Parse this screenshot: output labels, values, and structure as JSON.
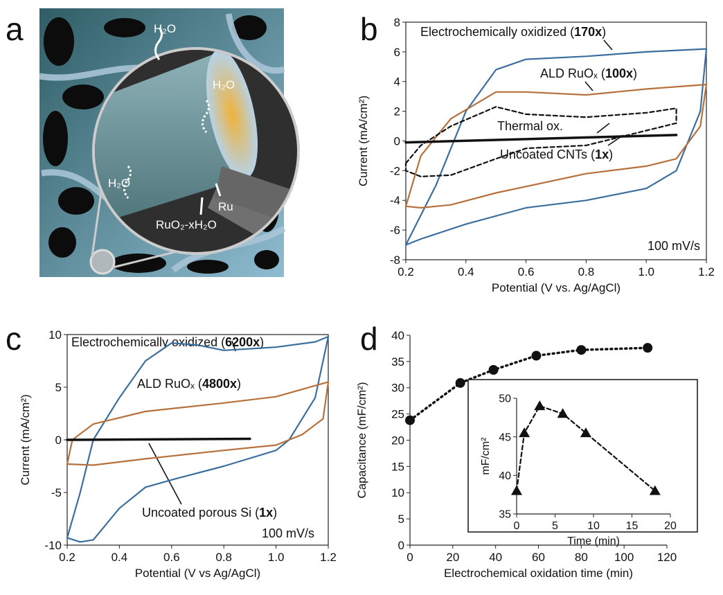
{
  "panel_labels": [
    "a",
    "b",
    "c",
    "d"
  ],
  "illustration": {
    "labels": [
      "H₂O",
      "H₂O",
      "H₂O",
      "Ru",
      "RuO₂-xH₂O"
    ]
  },
  "chart_data": [
    {
      "type": "line",
      "frame": true,
      "xlabel": "Potential (V vs. Ag/AgCl)",
      "ylabel": "Current (mA/cm²)",
      "xlim": [
        0.2,
        1.2
      ],
      "xticks": [
        0.2,
        0.4,
        0.6,
        0.8,
        {
          "value": 1,
          "label": "1.0"
        },
        1.2
      ],
      "ylim": [
        -8,
        8
      ],
      "yticks": [
        -8,
        -6,
        -4,
        -2,
        0,
        2,
        4,
        6,
        8
      ],
      "series": [
        {
          "color": "#3b6e9e",
          "line_style": "solid",
          "x": [
            0.2,
            0.3,
            0.4,
            0.5,
            0.6,
            0.8,
            1.0,
            1.2,
            1.18,
            1.1,
            1.0,
            0.8,
            0.6,
            0.4,
            0.25,
            0.2
          ],
          "values": [
            -7,
            -3,
            2,
            4.8,
            5.5,
            5.7,
            6,
            6.2,
            2,
            -2,
            -3.2,
            -4,
            -4.5,
            -5.6,
            -6.6,
            -7
          ]
        },
        {
          "color": "#b5703c",
          "line_style": "solid",
          "x": [
            0.2,
            0.25,
            0.35,
            0.5,
            0.6,
            0.8,
            1.0,
            1.2,
            1.18,
            1.1,
            1.0,
            0.8,
            0.5,
            0.35,
            0.25,
            0.2
          ],
          "values": [
            -4.4,
            -1,
            1.5,
            3.3,
            3.3,
            3.1,
            3.5,
            3.8,
            1,
            -1.2,
            -1.7,
            -2.2,
            -3.5,
            -4.3,
            -4.5,
            -4.4
          ]
        },
        {
          "color": "#111111",
          "line_style": "dashed",
          "x": [
            0.2,
            0.25,
            0.35,
            0.5,
            0.6,
            0.8,
            1.0,
            1.1,
            1.1,
            1.0,
            0.8,
            0.6,
            0.5,
            0.35,
            0.25,
            0.2,
            0.2
          ],
          "values": [
            -1.5,
            -0.3,
            1,
            2.3,
            1.8,
            1.6,
            1.9,
            2.2,
            1.2,
            0.7,
            -0.3,
            -0.5,
            -1.2,
            -2.3,
            -2.4,
            -2,
            -1.5
          ]
        },
        {
          "color": "#111111",
          "line_style": "thick",
          "x": [
            0.2,
            1.1
          ],
          "values": [
            -0.1,
            0.4
          ]
        }
      ],
      "annotations": [
        {
          "text": "Electrochemically oxidized (",
          "bold": "170x",
          "end": ")"
        },
        {
          "text": "ALD RuOₓ (",
          "bold": "100x",
          "end": ")"
        },
        {
          "text": "Thermal ox."
        },
        {
          "text": "Uncoated CNTs (",
          "bold": "1x",
          "end": ")"
        }
      ],
      "scan_rate": "100 mV/s"
    },
    {
      "type": "line",
      "frame": true,
      "xlabel": "Potential (V vs Ag/AgCl)",
      "ylabel": "Current (mA/cm²)",
      "xlim": [
        0.2,
        1.2
      ],
      "xticks": [
        0.2,
        0.4,
        0.6,
        0.8,
        {
          "value": 1,
          "label": "1.0"
        },
        1.2
      ],
      "ylim": [
        -10,
        10
      ],
      "yticks": [
        -10,
        -5,
        0,
        5,
        10
      ],
      "series": [
        {
          "color": "#3b6e9e",
          "line_style": "solid",
          "x": [
            0.2,
            0.25,
            0.3,
            0.4,
            0.5,
            0.6,
            0.7,
            0.8,
            1.0,
            1.15,
            1.2,
            1.15,
            1.05,
            1.0,
            0.8,
            0.6,
            0.5,
            0.4,
            0.3,
            0.25,
            0.2
          ],
          "values": [
            -9.3,
            -5,
            0,
            4,
            7.5,
            9.2,
            9,
            8.5,
            8.8,
            9.3,
            9.8,
            4,
            0,
            -1,
            -2.5,
            -3.8,
            -4.5,
            -6.5,
            -9.5,
            -9.7,
            -9.3
          ]
        },
        {
          "color": "#b5703c",
          "line_style": "solid",
          "x": [
            0.2,
            0.22,
            0.3,
            0.5,
            0.8,
            1.0,
            1.2,
            1.18,
            1.1,
            1.0,
            0.8,
            0.5,
            0.3,
            0.2
          ],
          "values": [
            -2.3,
            0,
            1.5,
            2.7,
            3.5,
            4.1,
            5.5,
            2,
            0.5,
            -0.5,
            -1,
            -1.8,
            -2.4,
            -2.3
          ]
        },
        {
          "color": "#111111",
          "line_style": "thick",
          "x": [
            0.2,
            0.9
          ],
          "values": [
            0,
            0.1
          ]
        }
      ],
      "annotations": [
        {
          "text": "Electrochemically oxidized (",
          "bold": "6200x",
          "end": ")"
        },
        {
          "text": "ALD RuOₓ (",
          "bold": "4800x",
          "end": ")"
        },
        {
          "text": "Uncoated porous Si (",
          "bold": "1x",
          "end": ")"
        }
      ],
      "scan_rate": "100 mV/s"
    },
    {
      "type": "line",
      "frame": false,
      "xlabel": "Electrochemical oxidation time (min)",
      "ylabel": "Capacitance (mF/cm²)",
      "xlim": [
        0,
        120
      ],
      "xticks": [
        0,
        20,
        40,
        60,
        80,
        100,
        120
      ],
      "ylim": [
        0,
        40
      ],
      "yticks": [
        0,
        5,
        10,
        15,
        20,
        25,
        30,
        35,
        40
      ],
      "series": [
        {
          "color": "#111111",
          "line_style": "dotted",
          "marker": "circle",
          "x": [
            0,
            23.5,
            39,
            59,
            80,
            111
          ],
          "values": [
            23.8,
            30.9,
            33.4,
            36.1,
            37.2,
            37.6
          ]
        }
      ],
      "inset": {
        "type": "line",
        "frame": false,
        "xlabel": "Time (min)",
        "ylabel": "mF/cm²",
        "xlim": [
          0,
          20
        ],
        "xticks": [
          0,
          5,
          10,
          15,
          20
        ],
        "ylim": [
          35,
          50
        ],
        "yticks": [
          35,
          40,
          45,
          50
        ],
        "series": [
          {
            "color": "#111111",
            "line_style": "dashed",
            "marker": "triangle",
            "x": [
              0,
              1,
              3,
              6,
              9,
              18
            ],
            "values": [
              38,
              45.5,
              49,
              48,
              45.5,
              38
            ]
          }
        ]
      }
    }
  ]
}
